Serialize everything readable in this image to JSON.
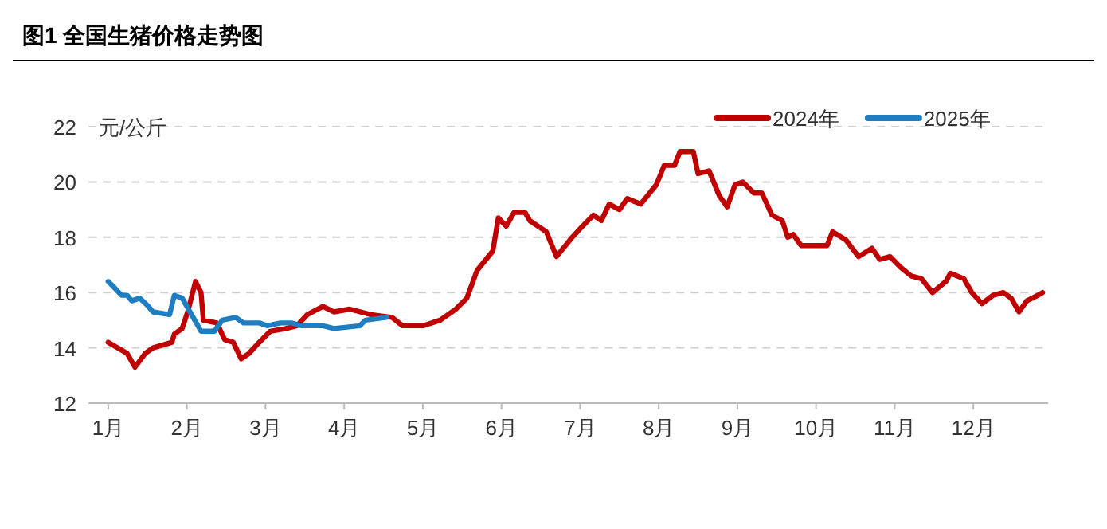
{
  "chart_data": {
    "type": "line",
    "title": "图1 全国生猪价格走势图",
    "ylabel": "元/公斤",
    "xlim": [
      0.75,
      12.95
    ],
    "xticks": [
      {
        "value": 1,
        "label": "1月"
      },
      {
        "value": 2,
        "label": "2月"
      },
      {
        "value": 3,
        "label": "3月"
      },
      {
        "value": 4,
        "label": "4月"
      },
      {
        "value": 5,
        "label": "5月"
      },
      {
        "value": 6,
        "label": "6月"
      },
      {
        "value": 7,
        "label": "7月"
      },
      {
        "value": 8,
        "label": "8月"
      },
      {
        "value": 9,
        "label": "9月"
      },
      {
        "value": 10,
        "label": "10月"
      },
      {
        "value": 11,
        "label": "11月"
      },
      {
        "value": 12,
        "label": "12月"
      }
    ],
    "ylim": [
      12,
      22
    ],
    "yticks": [
      12,
      14,
      16,
      18,
      20,
      22
    ],
    "grid": "y",
    "legend": "top right",
    "series": [
      {
        "name": "2024年",
        "color": "#c00000",
        "x": [
          1.0,
          1.24,
          1.34,
          1.47,
          1.57,
          1.81,
          1.84,
          1.94,
          2.01,
          2.11,
          2.18,
          2.21,
          2.38,
          2.48,
          2.59,
          2.69,
          2.79,
          2.92,
          3.06,
          3.26,
          3.4,
          3.53,
          3.73,
          3.87,
          4.07,
          4.34,
          4.61,
          4.74,
          5.01,
          5.22,
          5.42,
          5.56,
          5.69,
          5.89,
          5.96,
          6.06,
          6.16,
          6.3,
          6.36,
          6.57,
          6.7,
          6.9,
          7.03,
          7.17,
          7.27,
          7.37,
          7.5,
          7.6,
          7.77,
          7.97,
          8.07,
          8.2,
          8.27,
          8.44,
          8.5,
          8.64,
          8.77,
          8.87,
          8.97,
          9.07,
          9.21,
          9.31,
          9.44,
          9.57,
          9.64,
          9.71,
          9.81,
          10.14,
          10.21,
          10.38,
          10.54,
          10.71,
          10.81,
          10.94,
          11.08,
          11.21,
          11.34,
          11.48,
          11.65,
          11.71,
          11.88,
          11.98,
          12.11,
          12.25,
          12.38,
          12.48,
          12.58,
          12.68,
          12.82,
          12.88
        ],
        "values": [
          14.2,
          13.8,
          13.3,
          13.8,
          14.0,
          14.2,
          14.5,
          14.7,
          15.3,
          16.4,
          16.0,
          15.0,
          14.9,
          14.3,
          14.2,
          13.6,
          13.8,
          14.2,
          14.6,
          14.7,
          14.8,
          15.2,
          15.5,
          15.3,
          15.4,
          15.2,
          15.1,
          14.8,
          14.8,
          15.0,
          15.4,
          15.8,
          16.8,
          17.5,
          18.7,
          18.4,
          18.9,
          18.9,
          18.6,
          18.2,
          17.3,
          18.0,
          18.4,
          18.8,
          18.6,
          19.2,
          19.0,
          19.4,
          19.2,
          19.9,
          20.6,
          20.6,
          21.1,
          21.1,
          20.3,
          20.4,
          19.5,
          19.1,
          19.9,
          20.0,
          19.6,
          19.6,
          18.8,
          18.6,
          18.0,
          18.1,
          17.7,
          17.7,
          18.2,
          17.9,
          17.3,
          17.6,
          17.2,
          17.3,
          16.9,
          16.6,
          16.5,
          16.0,
          16.4,
          16.7,
          16.5,
          16.0,
          15.6,
          15.9,
          16.0,
          15.8,
          15.3,
          15.7,
          15.9,
          16.0
        ]
      },
      {
        "name": "2025年",
        "color": "#1f7ec2",
        "x": [
          1.0,
          1.07,
          1.17,
          1.24,
          1.3,
          1.4,
          1.51,
          1.57,
          1.78,
          1.84,
          1.94,
          2.08,
          2.18,
          2.35,
          2.45,
          2.62,
          2.72,
          2.82,
          2.92,
          3.02,
          3.19,
          3.33,
          3.46,
          3.73,
          3.87,
          4.2,
          4.27,
          4.54
        ],
        "values": [
          16.4,
          16.2,
          15.9,
          15.9,
          15.7,
          15.8,
          15.5,
          15.3,
          15.2,
          15.9,
          15.8,
          15.1,
          14.6,
          14.6,
          15.0,
          15.1,
          14.9,
          14.9,
          14.9,
          14.8,
          14.9,
          14.9,
          14.8,
          14.8,
          14.7,
          14.8,
          15.0,
          15.1
        ]
      }
    ]
  }
}
